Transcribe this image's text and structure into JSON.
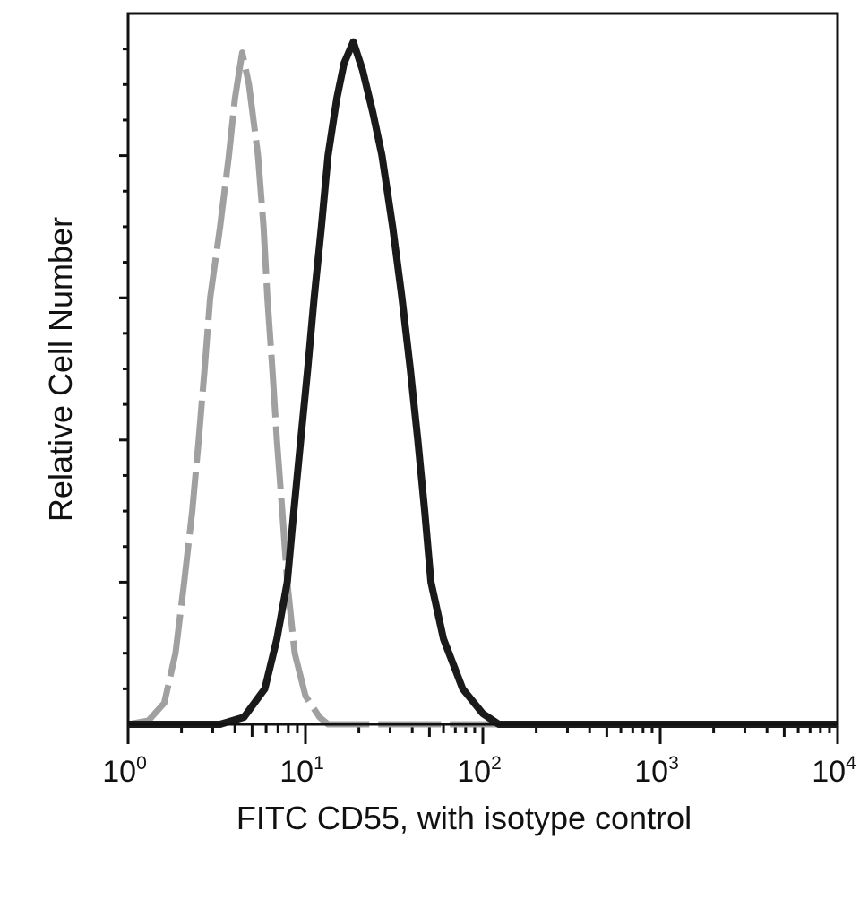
{
  "chart_data": {
    "type": "line",
    "title": "",
    "xlabel": "FITC CD55, with isotype control",
    "ylabel": "Relative Cell Number",
    "xscale": "log",
    "xlim": [
      1,
      10000
    ],
    "ylim": [
      0,
      1
    ],
    "grid": false,
    "legend": "none",
    "x_ticks": [
      {
        "base": "10",
        "exp": "0",
        "value": 1
      },
      {
        "base": "10",
        "exp": "1",
        "value": 10
      },
      {
        "base": "10",
        "exp": "2",
        "value": 100
      },
      {
        "base": "10",
        "exp": "3",
        "value": 1000
      },
      {
        "base": "10",
        "exp": "4",
        "value": 10000
      }
    ],
    "series": [
      {
        "style": "dashed",
        "color": "#a0a0a0",
        "points": [
          [
            1.0,
            0.0
          ],
          [
            1.3,
            0.005
          ],
          [
            1.6,
            0.03
          ],
          [
            1.85,
            0.1
          ],
          [
            2.07,
            0.2
          ],
          [
            2.3,
            0.3
          ],
          [
            2.5,
            0.4
          ],
          [
            2.7,
            0.5
          ],
          [
            2.9,
            0.6
          ],
          [
            3.3,
            0.7
          ],
          [
            3.7,
            0.8
          ],
          [
            4.0,
            0.88
          ],
          [
            4.4,
            0.945
          ],
          [
            4.8,
            0.9
          ],
          [
            5.4,
            0.8
          ],
          [
            5.8,
            0.7
          ],
          [
            6.1,
            0.6
          ],
          [
            6.5,
            0.5
          ],
          [
            6.9,
            0.4
          ],
          [
            7.4,
            0.3
          ],
          [
            7.9,
            0.2
          ],
          [
            8.7,
            0.1
          ],
          [
            10.0,
            0.04
          ],
          [
            12.0,
            0.01
          ],
          [
            13.4,
            0.0
          ],
          [
            10000,
            0.0
          ]
        ]
      },
      {
        "style": "solid",
        "color": "#1a1a1a",
        "points": [
          [
            1.0,
            0.0
          ],
          [
            3.3,
            0.0
          ],
          [
            4.5,
            0.01
          ],
          [
            5.9,
            0.05
          ],
          [
            6.9,
            0.12
          ],
          [
            7.9,
            0.2
          ],
          [
            8.6,
            0.3
          ],
          [
            9.4,
            0.4
          ],
          [
            10.3,
            0.5
          ],
          [
            11.2,
            0.6
          ],
          [
            12.3,
            0.7
          ],
          [
            13.4,
            0.8
          ],
          [
            15.0,
            0.88
          ],
          [
            16.5,
            0.93
          ],
          [
            18.6,
            0.96
          ],
          [
            21.0,
            0.92
          ],
          [
            24.0,
            0.86
          ],
          [
            27.0,
            0.8
          ],
          [
            31.0,
            0.7
          ],
          [
            35.0,
            0.6
          ],
          [
            39.0,
            0.5
          ],
          [
            43.0,
            0.4
          ],
          [
            47.0,
            0.3
          ],
          [
            51.0,
            0.2
          ],
          [
            60.0,
            0.12
          ],
          [
            77.0,
            0.05
          ],
          [
            100.0,
            0.015
          ],
          [
            123.0,
            0.0
          ],
          [
            10000,
            0.0
          ]
        ]
      }
    ]
  }
}
